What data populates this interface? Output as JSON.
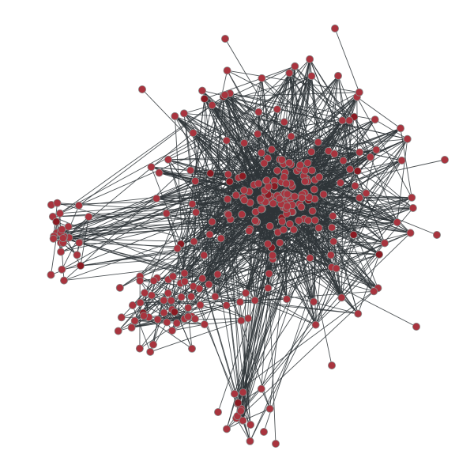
{
  "colors": {
    "background": "#ffffff",
    "edge": "#2f3538",
    "node_fill": "#a8343e",
    "node_fill_dark": "#8a1a22",
    "node_stroke": "#8a8a8a"
  },
  "graph": {
    "type": "network",
    "seed": 7,
    "clusters": [
      {
        "id": "core",
        "nodes": 215,
        "intra_edges": 1150
      },
      {
        "id": "left-fringe",
        "nodes": 28,
        "intra_edges": 34
      },
      {
        "id": "lower-left",
        "nodes": 48,
        "intra_edges": 90
      },
      {
        "id": "bottom-tail",
        "nodes": 14,
        "intra_edges": 16
      }
    ],
    "inter_edges": 210
  }
}
